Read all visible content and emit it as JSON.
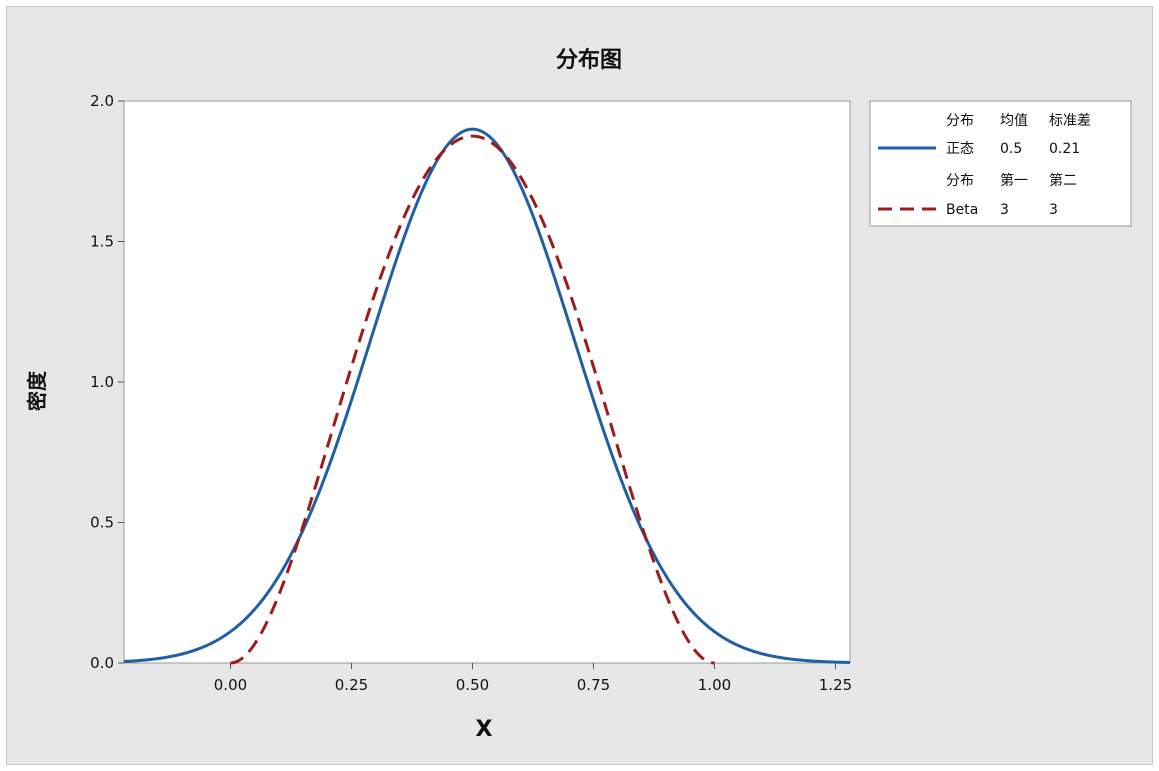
{
  "chart_data": {
    "type": "line",
    "title": "分布图",
    "xlabel": "X",
    "ylabel": "密度",
    "xlim": [
      -0.22,
      1.28
    ],
    "ylim": [
      0,
      2.0
    ],
    "x_ticks": [
      0.0,
      0.25,
      0.5,
      0.75,
      1.0,
      1.25
    ],
    "x_tick_labels": [
      "0.00",
      "0.25",
      "0.50",
      "0.75",
      "1.00",
      "1.25"
    ],
    "y_ticks": [
      0.0,
      0.5,
      1.0,
      1.5,
      2.0
    ],
    "y_tick_labels": [
      "0.0",
      "0.5",
      "1.0",
      "1.5",
      "2.0"
    ],
    "grid": false,
    "legend_position": "top-right, outside plot",
    "series": [
      {
        "name": "正态",
        "distribution": "normal",
        "params": {
          "mean": 0.5,
          "sd": 0.21
        },
        "color": "#1f5fa8",
        "style": "solid",
        "x": [
          -0.2,
          -0.1,
          0.0,
          0.1,
          0.2,
          0.3,
          0.4,
          0.5,
          0.6,
          0.7,
          0.8,
          0.9,
          1.0,
          1.1,
          1.2
        ],
        "y": [
          0.007,
          0.03,
          0.11,
          0.31,
          0.69,
          1.21,
          1.7,
          1.9,
          1.7,
          1.21,
          0.69,
          0.31,
          0.11,
          0.03,
          0.007
        ]
      },
      {
        "name": "Beta",
        "distribution": "beta",
        "params": {
          "a": 3,
          "b": 3
        },
        "color": "#9c1c1c",
        "style": "dashed",
        "x": [
          0.0,
          0.1,
          0.2,
          0.3,
          0.4,
          0.5,
          0.6,
          0.7,
          0.8,
          0.9,
          1.0
        ],
        "y": [
          0.0,
          0.24,
          0.77,
          1.32,
          1.73,
          1.875,
          1.73,
          1.32,
          0.77,
          0.24,
          0.0
        ]
      }
    ]
  },
  "legend": {
    "normal_header": [
      "分布",
      "均值",
      "标准差"
    ],
    "normal_row": [
      "正态",
      "0.5",
      "0.21"
    ],
    "beta_header": [
      "分布",
      "第一",
      "第二"
    ],
    "beta_row": [
      "Beta",
      "3",
      "3"
    ]
  }
}
